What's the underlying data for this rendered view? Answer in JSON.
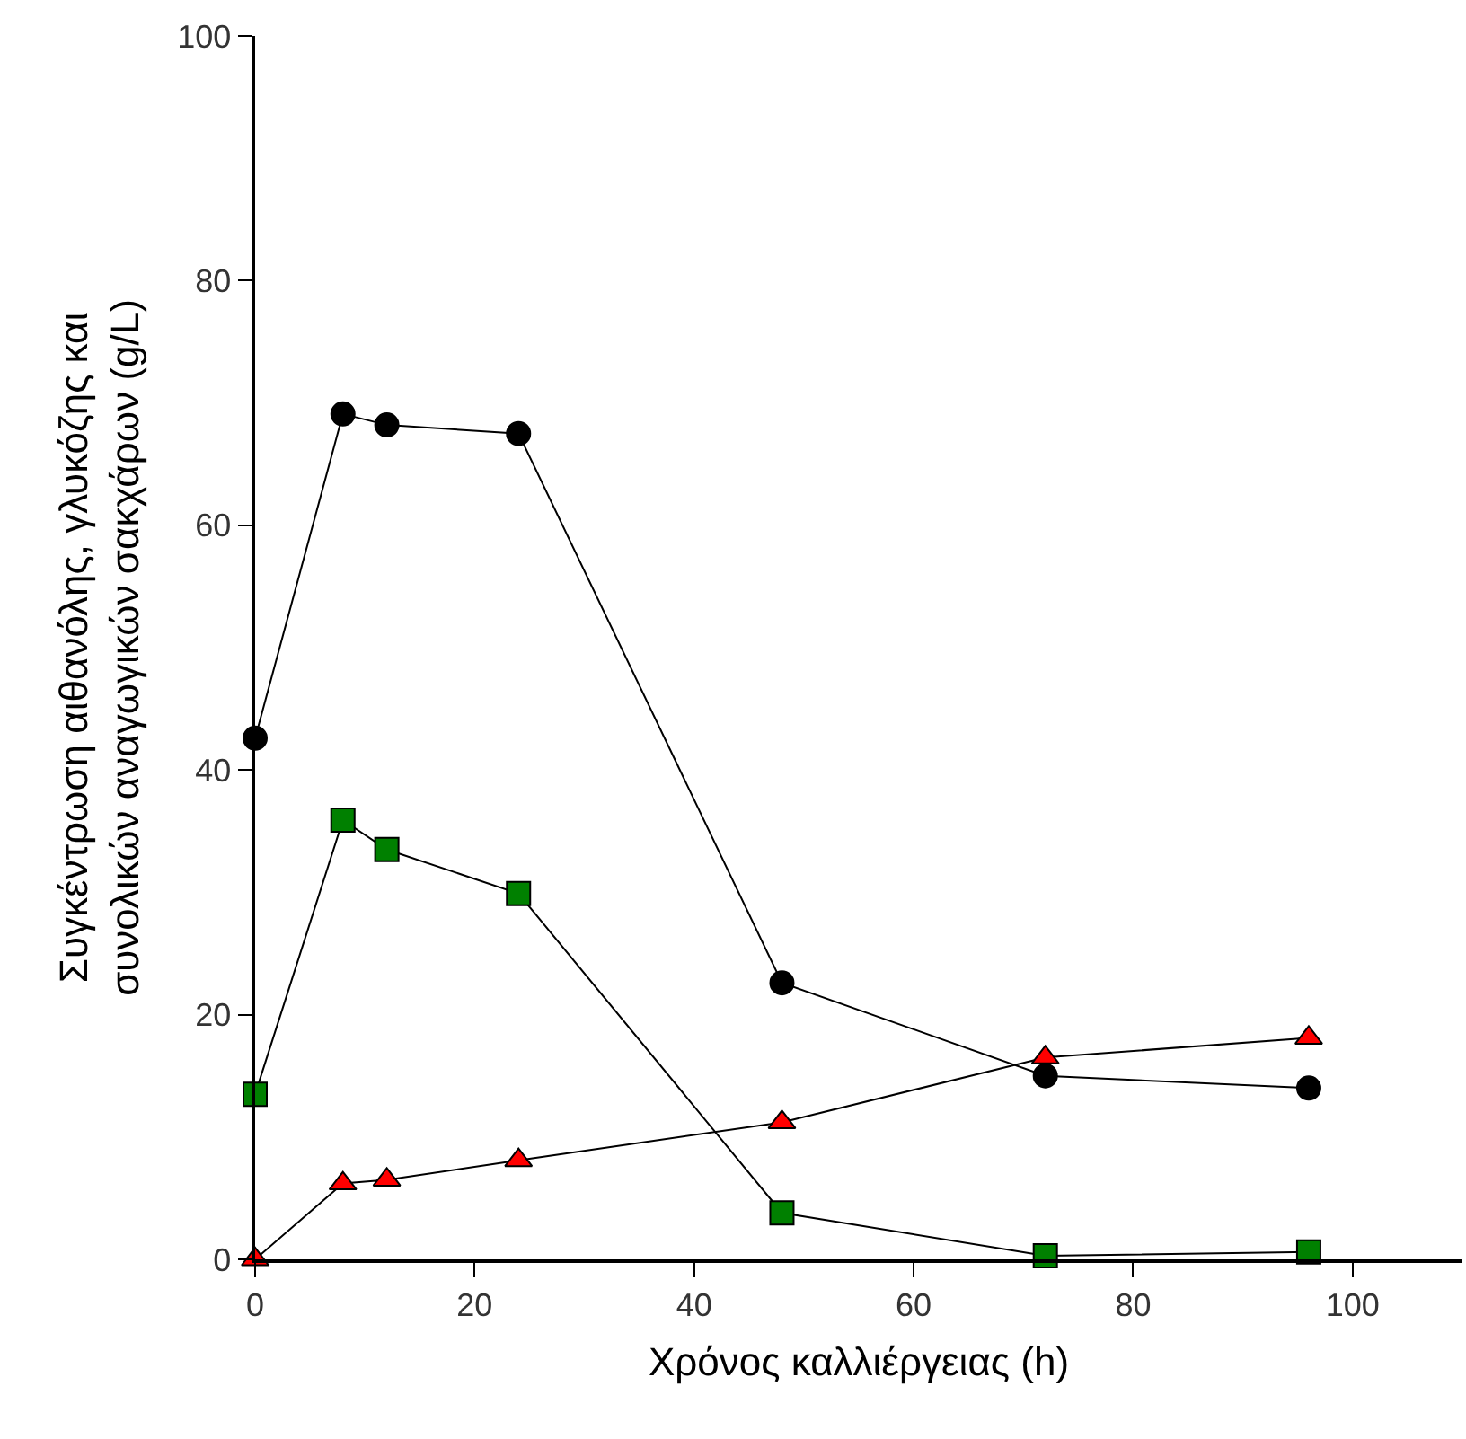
{
  "chart_data": {
    "type": "line",
    "xlabel": "Χρόνος καλλιέργειας (h)",
    "ylabel": "Συγκέντρωση αιθανόλης, γλυκόζης και\nσυνολικών αναγωγικών σακχάρων (g/L)",
    "xlim": [
      0,
      110
    ],
    "xticks": [
      0,
      20,
      40,
      60,
      80,
      100
    ],
    "ylim": [
      0,
      100
    ],
    "yticks": [
      0,
      20,
      40,
      60,
      80,
      100
    ],
    "line_style": "solid",
    "x": [
      0,
      8,
      12,
      24,
      48,
      72,
      96
    ],
    "series": [
      {
        "color": "#000000",
        "marker": "circle",
        "values": [
          42.6,
          69.1,
          68.2,
          67.5,
          22.6,
          15.0,
          14.0
        ]
      },
      {
        "color": "#008000",
        "marker": "square",
        "values": [
          13.5,
          35.9,
          33.5,
          29.9,
          3.8,
          0.3,
          0.6
        ]
      },
      {
        "color": "#ff0000",
        "marker": "triangle",
        "values": [
          0,
          6.2,
          6.5,
          8.1,
          11.2,
          16.5,
          18.1
        ]
      }
    ]
  }
}
